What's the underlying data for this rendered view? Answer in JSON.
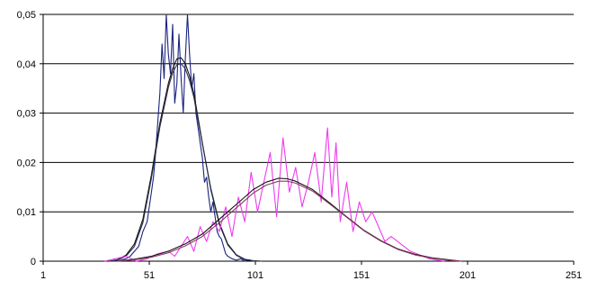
{
  "chart_data": {
    "type": "line",
    "title": "",
    "xlabel": "",
    "ylabel": "",
    "xlim": [
      1,
      251
    ],
    "ylim": [
      0,
      0.05
    ],
    "grid": "horizontal",
    "legend": "none",
    "x_ticks": [
      {
        "value": 1,
        "label": "1"
      },
      {
        "value": 51,
        "label": "51"
      },
      {
        "value": 101,
        "label": "101"
      },
      {
        "value": 151,
        "label": "151"
      },
      {
        "value": 201,
        "label": "201"
      },
      {
        "value": 251,
        "label": "251"
      }
    ],
    "y_ticks": [
      {
        "value": 0,
        "label": "0"
      },
      {
        "value": 0.01,
        "label": "0,01"
      },
      {
        "value": 0.02,
        "label": "0,02"
      },
      {
        "value": 0.03,
        "label": "0,03"
      },
      {
        "value": 0.04,
        "label": "0,04"
      },
      {
        "value": 0.05,
        "label": "0,05"
      }
    ],
    "series": [
      {
        "color": "#1a237e",
        "x": [
          32,
          36,
          40,
          42,
          44,
          46,
          48,
          50,
          51,
          52,
          53,
          54,
          55,
          56,
          57,
          58,
          59,
          60,
          61,
          62,
          63,
          64,
          65,
          66,
          67,
          68,
          69,
          70,
          71,
          72,
          73,
          74,
          75,
          76,
          77,
          78,
          79,
          80,
          81,
          82,
          83,
          84,
          85,
          86,
          87,
          88,
          90,
          92,
          94,
          96,
          98,
          100,
          102
        ],
        "values": [
          0,
          0,
          0.0005,
          0.001,
          0.002,
          0.003,
          0.006,
          0.008,
          0.011,
          0.014,
          0.017,
          0.022,
          0.028,
          0.034,
          0.044,
          0.037,
          0.05,
          0.042,
          0.038,
          0.048,
          0.032,
          0.036,
          0.046,
          0.037,
          0.03,
          0.041,
          0.05,
          0.042,
          0.035,
          0.038,
          0.03,
          0.027,
          0.024,
          0.021,
          0.016,
          0.017,
          0.013,
          0.01,
          0.012,
          0.009,
          0.006,
          0.005,
          0.0045,
          0.003,
          0.0015,
          0.001,
          0.0005,
          0.0002,
          0.0005,
          0,
          0.0003,
          0,
          0
        ]
      },
      {
        "color": "#111111",
        "x": [
          32,
          36,
          40,
          44,
          48,
          52,
          56,
          60,
          62,
          64,
          66,
          68,
          70,
          72,
          76,
          80,
          84,
          88,
          92,
          96,
          100,
          104
        ],
        "values": [
          0,
          0.0003,
          0.0012,
          0.0035,
          0.0085,
          0.0175,
          0.028,
          0.036,
          0.039,
          0.041,
          0.0412,
          0.04,
          0.0375,
          0.034,
          0.024,
          0.0145,
          0.0075,
          0.0033,
          0.0012,
          0.0003,
          0.0001,
          0
        ]
      },
      {
        "color": "#2b2f4a",
        "x": [
          32,
          36,
          40,
          44,
          48,
          52,
          56,
          60,
          62,
          64,
          66,
          68,
          70,
          72,
          76,
          80,
          84,
          88,
          92,
          96,
          100,
          104
        ],
        "values": [
          0,
          0.0002,
          0.001,
          0.003,
          0.0078,
          0.0168,
          0.0272,
          0.0352,
          0.0382,
          0.0398,
          0.04,
          0.039,
          0.0366,
          0.0332,
          0.0238,
          0.0148,
          0.0078,
          0.0035,
          0.0013,
          0.0004,
          0.0001,
          0
        ]
      },
      {
        "color": "#ee3bee",
        "x": [
          30,
          35,
          40,
          45,
          50,
          55,
          60,
          63,
          66,
          69,
          72,
          75,
          78,
          81,
          84,
          87,
          90,
          93,
          96,
          99,
          102,
          105,
          108,
          111,
          114,
          117,
          120,
          123,
          126,
          129,
          132,
          135,
          137,
          139,
          141,
          144,
          147,
          150,
          153,
          156,
          159,
          162,
          165,
          168,
          171,
          174,
          177,
          180,
          183,
          186,
          190
        ],
        "values": [
          0,
          0.0005,
          0.001,
          0,
          0.0005,
          0.0015,
          0.002,
          0.001,
          0.003,
          0.005,
          0.002,
          0.007,
          0.004,
          0.008,
          0.006,
          0.011,
          0.005,
          0.013,
          0.008,
          0.018,
          0.01,
          0.016,
          0.022,
          0.009,
          0.025,
          0.014,
          0.019,
          0.011,
          0.016,
          0.022,
          0.012,
          0.027,
          0.013,
          0.024,
          0.008,
          0.016,
          0.006,
          0.012,
          0.008,
          0.01,
          0.007,
          0.004,
          0.005,
          0.004,
          0.003,
          0.002,
          0.0015,
          0.001,
          0.0005,
          0.0003,
          0
        ]
      },
      {
        "color": "#111111",
        "x": [
          36,
          44,
          52,
          60,
          68,
          76,
          84,
          92,
          100,
          106,
          112,
          116,
          120,
          128,
          136,
          144,
          152,
          160,
          168,
          176,
          184,
          192,
          198
        ],
        "values": [
          0,
          0.0004,
          0.001,
          0.002,
          0.0035,
          0.0055,
          0.0085,
          0.0115,
          0.0145,
          0.016,
          0.0168,
          0.0167,
          0.0162,
          0.0145,
          0.0118,
          0.009,
          0.0063,
          0.0042,
          0.0025,
          0.0014,
          0.0007,
          0.0003,
          0
        ]
      },
      {
        "color": "#8b3a62",
        "x": [
          36,
          44,
          52,
          60,
          68,
          76,
          84,
          92,
          100,
          106,
          112,
          116,
          120,
          128,
          136,
          144,
          152,
          160,
          168,
          176,
          184,
          192,
          198
        ],
        "values": [
          0,
          0.0003,
          0.0008,
          0.0017,
          0.0031,
          0.005,
          0.0078,
          0.0108,
          0.0138,
          0.0154,
          0.0162,
          0.0162,
          0.0158,
          0.0142,
          0.0116,
          0.0089,
          0.0062,
          0.0041,
          0.0024,
          0.0013,
          0.0006,
          0.0002,
          0
        ]
      }
    ]
  }
}
